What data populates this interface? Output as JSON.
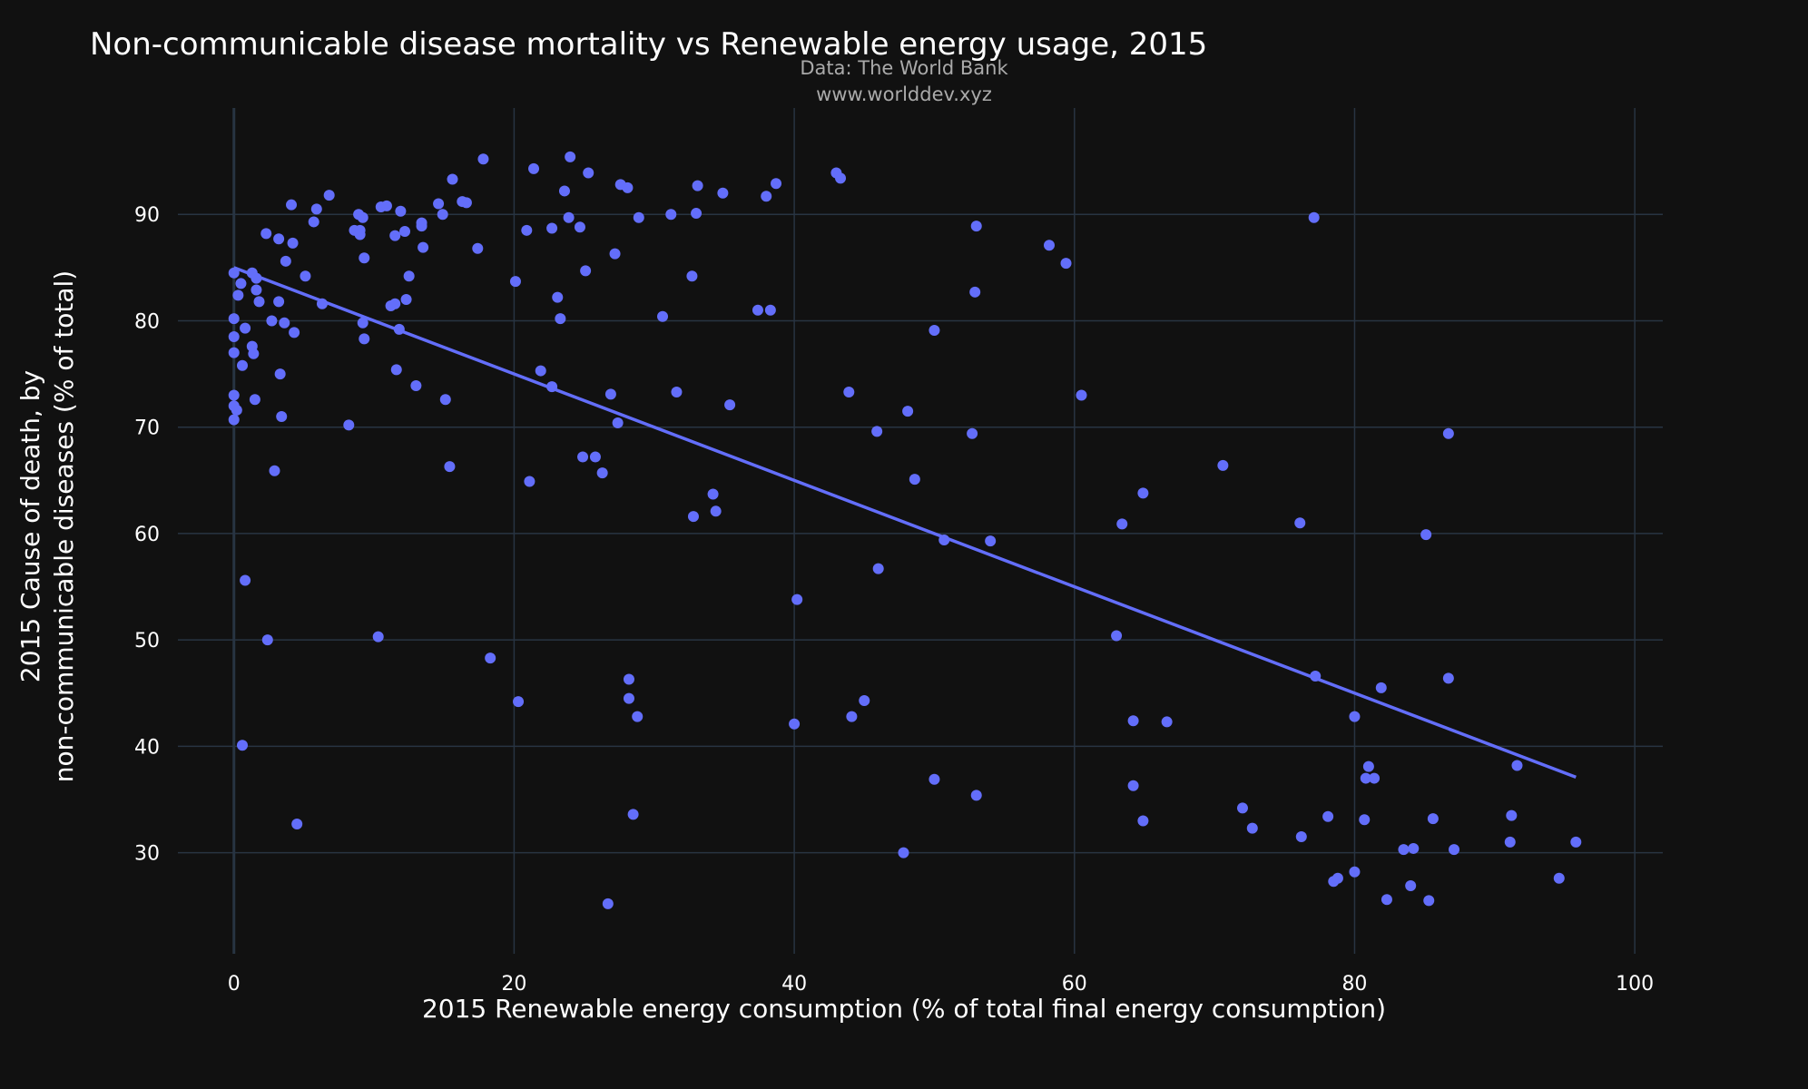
{
  "chart_data": {
    "type": "scatter",
    "title": "Non-communicable disease mortality vs Renewable energy usage, 2015",
    "source_lines": [
      "Data: The World Bank",
      "www.worlddev.xyz"
    ],
    "xlabel": "2015 Renewable energy consumption (% of total final energy consumption)",
    "ylabel_lines": [
      "2015 Cause of death, by",
      "non-communicable diseases (% of total)"
    ],
    "xlim": [
      -4,
      102
    ],
    "ylim": [
      20.5,
      100
    ],
    "xticks": [
      0,
      20,
      40,
      60,
      80,
      100
    ],
    "yticks": [
      30,
      40,
      50,
      60,
      70,
      80,
      90
    ],
    "grid": true,
    "colors": {
      "background": "#111111",
      "grid": "#283442",
      "points": "#636efa"
    },
    "trendline": {
      "x": [
        0,
        95.8
      ],
      "y": [
        85.0,
        37.1
      ]
    },
    "points": [
      [
        0.0,
        84.5
      ],
      [
        0.0,
        80.2
      ],
      [
        0.0,
        78.5
      ],
      [
        0.0,
        77.0
      ],
      [
        0.0,
        73.0
      ],
      [
        0.0,
        72.0
      ],
      [
        0.2,
        71.6
      ],
      [
        0.0,
        70.7
      ],
      [
        0.5,
        83.5
      ],
      [
        0.3,
        82.4
      ],
      [
        0.8,
        79.3
      ],
      [
        0.6,
        75.8
      ],
      [
        0.8,
        55.6
      ],
      [
        0.6,
        40.1
      ],
      [
        1.3,
        84.5
      ],
      [
        1.6,
        84.0
      ],
      [
        1.6,
        82.9
      ],
      [
        1.8,
        81.8
      ],
      [
        1.3,
        77.6
      ],
      [
        1.4,
        76.9
      ],
      [
        1.5,
        72.6
      ],
      [
        2.3,
        88.2
      ],
      [
        2.7,
        80.0
      ],
      [
        2.4,
        50.0
      ],
      [
        2.9,
        65.9
      ],
      [
        3.2,
        87.7
      ],
      [
        3.2,
        81.8
      ],
      [
        3.3,
        75.0
      ],
      [
        3.4,
        71.0
      ],
      [
        3.6,
        79.8
      ],
      [
        3.7,
        85.6
      ],
      [
        4.1,
        90.9
      ],
      [
        4.2,
        87.3
      ],
      [
        4.3,
        78.9
      ],
      [
        4.5,
        32.7
      ],
      [
        5.1,
        84.2
      ],
      [
        5.7,
        89.3
      ],
      [
        5.9,
        90.5
      ],
      [
        6.3,
        81.6
      ],
      [
        6.8,
        91.8
      ],
      [
        8.2,
        70.2
      ],
      [
        8.6,
        88.5
      ],
      [
        8.9,
        90.0
      ],
      [
        9.0,
        88.5
      ],
      [
        9.0,
        88.1
      ],
      [
        9.2,
        89.7
      ],
      [
        9.2,
        79.8
      ],
      [
        9.3,
        85.9
      ],
      [
        9.3,
        78.3
      ],
      [
        10.3,
        50.3
      ],
      [
        10.5,
        90.7
      ],
      [
        10.9,
        90.8
      ],
      [
        11.2,
        81.4
      ],
      [
        11.5,
        81.6
      ],
      [
        11.5,
        88.0
      ],
      [
        11.6,
        75.4
      ],
      [
        11.8,
        79.2
      ],
      [
        11.9,
        90.3
      ],
      [
        12.2,
        88.4
      ],
      [
        12.3,
        82.0
      ],
      [
        12.5,
        84.2
      ],
      [
        13.0,
        73.9
      ],
      [
        13.4,
        88.9
      ],
      [
        13.4,
        89.2
      ],
      [
        13.5,
        86.9
      ],
      [
        14.6,
        91.0
      ],
      [
        14.9,
        90.0
      ],
      [
        15.1,
        72.6
      ],
      [
        15.4,
        66.3
      ],
      [
        15.6,
        93.3
      ],
      [
        16.3,
        91.2
      ],
      [
        16.6,
        91.1
      ],
      [
        17.4,
        86.8
      ],
      [
        17.8,
        95.2
      ],
      [
        18.3,
        48.3
      ],
      [
        20.1,
        83.7
      ],
      [
        20.3,
        44.2
      ],
      [
        20.9,
        88.5
      ],
      [
        21.1,
        64.9
      ],
      [
        21.4,
        94.3
      ],
      [
        21.9,
        75.3
      ],
      [
        22.7,
        73.8
      ],
      [
        22.7,
        88.7
      ],
      [
        23.1,
        82.2
      ],
      [
        23.3,
        80.2
      ],
      [
        23.6,
        92.2
      ],
      [
        23.9,
        89.7
      ],
      [
        24.0,
        95.4
      ],
      [
        24.7,
        88.8
      ],
      [
        24.9,
        67.2
      ],
      [
        25.1,
        84.7
      ],
      [
        25.3,
        93.9
      ],
      [
        25.8,
        67.2
      ],
      [
        26.3,
        65.7
      ],
      [
        26.7,
        25.2
      ],
      [
        26.9,
        73.1
      ],
      [
        27.2,
        86.3
      ],
      [
        27.4,
        70.4
      ],
      [
        27.6,
        92.8
      ],
      [
        28.1,
        92.5
      ],
      [
        28.2,
        46.3
      ],
      [
        28.2,
        44.5
      ],
      [
        28.5,
        33.6
      ],
      [
        28.8,
        42.8
      ],
      [
        28.9,
        89.7
      ],
      [
        30.6,
        80.4
      ],
      [
        31.2,
        90.0
      ],
      [
        31.6,
        73.3
      ],
      [
        32.7,
        84.2
      ],
      [
        32.8,
        61.6
      ],
      [
        33.0,
        90.1
      ],
      [
        33.1,
        92.7
      ],
      [
        34.2,
        63.7
      ],
      [
        34.4,
        62.1
      ],
      [
        34.9,
        92.0
      ],
      [
        35.4,
        72.1
      ],
      [
        37.4,
        81.0
      ],
      [
        38.0,
        91.7
      ],
      [
        38.3,
        81.0
      ],
      [
        38.7,
        92.9
      ],
      [
        40.0,
        42.1
      ],
      [
        40.2,
        53.8
      ],
      [
        43.0,
        93.9
      ],
      [
        43.3,
        93.4
      ],
      [
        43.9,
        73.3
      ],
      [
        44.1,
        42.8
      ],
      [
        45.0,
        44.3
      ],
      [
        45.9,
        69.6
      ],
      [
        46.0,
        56.7
      ],
      [
        47.8,
        30.0
      ],
      [
        48.1,
        71.5
      ],
      [
        48.6,
        65.1
      ],
      [
        50.0,
        79.1
      ],
      [
        50.0,
        36.9
      ],
      [
        50.7,
        59.4
      ],
      [
        52.7,
        69.4
      ],
      [
        52.9,
        82.7
      ],
      [
        53.0,
        88.9
      ],
      [
        53.0,
        35.4
      ],
      [
        54.0,
        59.3
      ],
      [
        58.2,
        87.1
      ],
      [
        59.4,
        85.4
      ],
      [
        60.5,
        73.0
      ],
      [
        63.0,
        50.4
      ],
      [
        63.4,
        60.9
      ],
      [
        64.2,
        42.4
      ],
      [
        64.2,
        36.3
      ],
      [
        64.9,
        63.8
      ],
      [
        64.9,
        33.0
      ],
      [
        66.6,
        42.3
      ],
      [
        70.6,
        66.4
      ],
      [
        72.0,
        34.2
      ],
      [
        72.7,
        32.3
      ],
      [
        76.1,
        61.0
      ],
      [
        76.2,
        31.5
      ],
      [
        77.1,
        89.7
      ],
      [
        77.2,
        46.6
      ],
      [
        78.1,
        33.4
      ],
      [
        78.5,
        27.3
      ],
      [
        78.8,
        27.6
      ],
      [
        80.0,
        42.8
      ],
      [
        80.0,
        28.2
      ],
      [
        80.7,
        33.1
      ],
      [
        80.8,
        37.0
      ],
      [
        81.0,
        38.1
      ],
      [
        81.4,
        37.0
      ],
      [
        81.9,
        45.5
      ],
      [
        82.3,
        25.6
      ],
      [
        83.5,
        30.3
      ],
      [
        84.0,
        26.9
      ],
      [
        84.2,
        30.4
      ],
      [
        85.1,
        59.9
      ],
      [
        85.3,
        25.5
      ],
      [
        85.6,
        33.2
      ],
      [
        86.7,
        69.4
      ],
      [
        86.7,
        46.4
      ],
      [
        87.1,
        30.3
      ],
      [
        91.1,
        31.0
      ],
      [
        91.2,
        33.5
      ],
      [
        91.6,
        38.2
      ],
      [
        94.6,
        27.6
      ],
      [
        95.8,
        31.0
      ]
    ]
  }
}
